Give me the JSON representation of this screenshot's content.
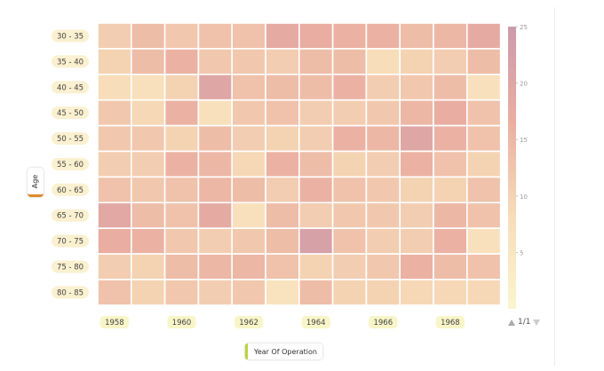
{
  "chart_data": {
    "type": "heatmap",
    "title": "",
    "xlabel": "Year Of Operation",
    "ylabel": "Age",
    "x_tick_labels": [
      "1958",
      "1960",
      "1962",
      "1964",
      "1966",
      "1968"
    ],
    "columns": [
      1958,
      1959,
      1960,
      1961,
      1962,
      1963,
      1964,
      1965,
      1966,
      1967,
      1968,
      1969
    ],
    "rows": [
      "30 - 35",
      "35 - 40",
      "40 - 45",
      "45 - 50",
      "50 - 55",
      "55 - 60",
      "60 - 65",
      "65 - 70",
      "70 - 75",
      "75 - 80",
      "80 - 85"
    ],
    "values": [
      [
        11,
        14,
        12,
        13,
        13,
        18,
        17,
        16,
        16,
        14,
        15,
        18
      ],
      [
        10,
        14,
        16,
        12,
        12,
        11,
        14,
        14,
        8,
        10,
        11,
        14
      ],
      [
        8,
        7,
        10,
        20,
        13,
        14,
        14,
        16,
        11,
        12,
        14,
        7
      ],
      [
        12,
        9,
        16,
        7,
        12,
        13,
        11,
        11,
        12,
        15,
        17,
        13
      ],
      [
        12,
        12,
        10,
        14,
        11,
        10,
        11,
        16,
        15,
        20,
        16,
        13
      ],
      [
        11,
        11,
        16,
        15,
        9,
        16,
        14,
        10,
        11,
        16,
        13,
        10
      ],
      [
        13,
        12,
        13,
        15,
        14,
        11,
        16,
        13,
        12,
        10,
        10,
        13
      ],
      [
        19,
        14,
        13,
        18,
        7,
        14,
        11,
        12,
        12,
        11,
        15,
        13
      ],
      [
        17,
        16,
        12,
        11,
        12,
        14,
        22,
        13,
        11,
        11,
        16,
        7
      ],
      [
        11,
        10,
        14,
        15,
        15,
        13,
        10,
        11,
        12,
        16,
        14,
        13
      ],
      [
        13,
        10,
        12,
        11,
        12,
        6,
        14,
        10,
        10,
        9,
        9,
        9
      ]
    ],
    "colorbar": {
      "min": 0,
      "max": 25,
      "ticks": [
        5,
        10,
        15,
        20,
        25
      ]
    },
    "color_stops": [
      "#fbf5cf",
      "#f7dcb8",
      "#eaaea1",
      "#cd9aac"
    ],
    "grid": false,
    "legend": "right"
  },
  "pager": {
    "text": "1/1"
  }
}
